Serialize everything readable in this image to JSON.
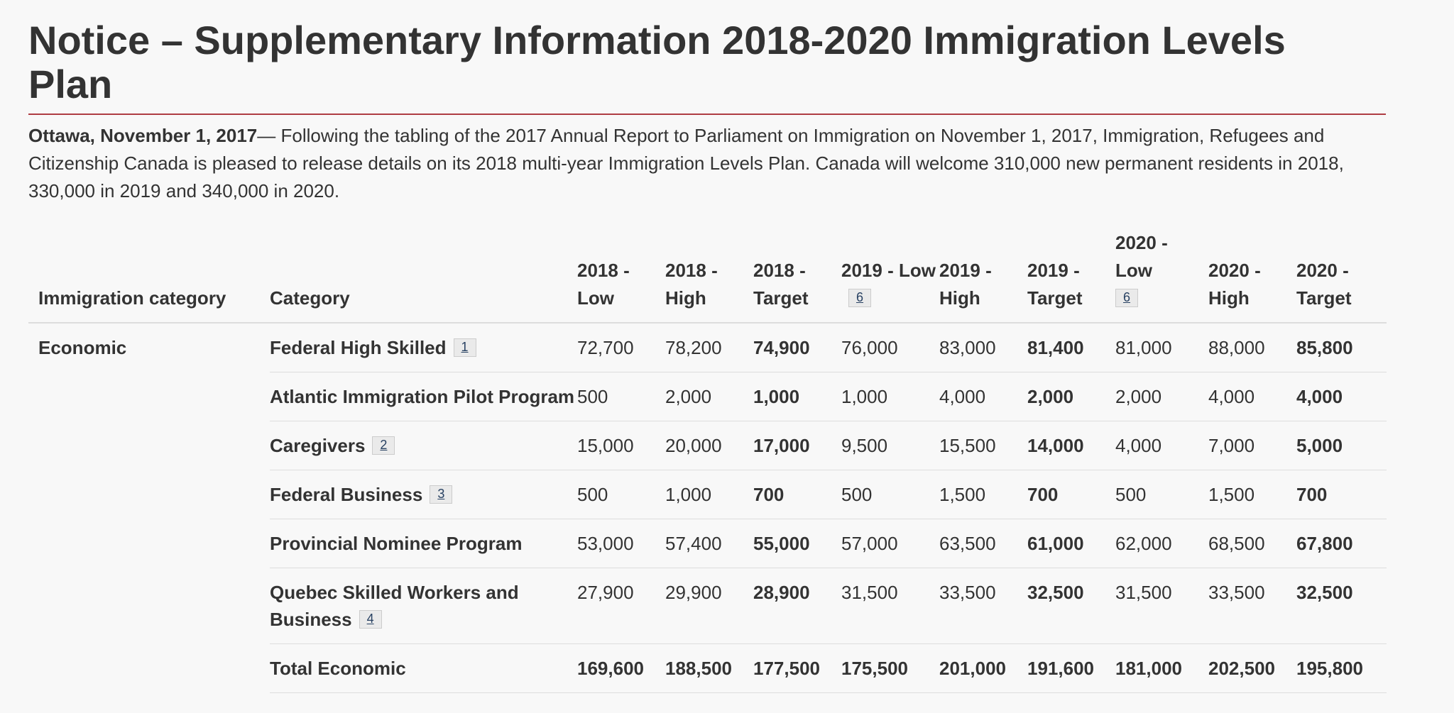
{
  "page": {
    "title": "Notice – Supplementary Information 2018-2020 Immigration Levels Plan",
    "dateline": "Ottawa, November 1, 2017",
    "intro_text": "— Following the tabling of the 2017 Annual Report to Parliament on Immigration on November 1, 2017, Immigration, Refugees and Citizenship Canada is pleased to release details on its 2018 multi-year Immigration Levels Plan. Canada will welcome 310,000 new permanent residents in 2018, 330,000 in 2019 and 340,000 in 2020."
  },
  "table": {
    "headers": {
      "immigration_category": "Immigration category",
      "category": "Category",
      "h2018_low": "2018 - Low",
      "h2018_high": "2018 - High",
      "h2018_target": "2018 - Target",
      "h2019_low": "2019 - Low",
      "h2019_low_fn": "6",
      "h2019_high": "2019 - High",
      "h2019_target": "2019 - Target",
      "h2020_low": "2020 - Low",
      "h2020_low_fn": "6",
      "h2020_high": "2020 - High",
      "h2020_target": "2020 - Target"
    },
    "group": "Economic",
    "rows": [
      {
        "category": "Federal High Skilled",
        "fn": "1",
        "values": [
          "72,700",
          "78,200",
          "74,900",
          "76,000",
          "83,000",
          "81,400",
          "81,000",
          "88,000",
          "85,800"
        ]
      },
      {
        "category": "Atlantic Immigration Pilot Program",
        "fn": "",
        "values": [
          "500",
          "2,000",
          "1,000",
          "1,000",
          "4,000",
          "2,000",
          "2,000",
          "4,000",
          "4,000"
        ]
      },
      {
        "category": "Caregivers",
        "fn": "2",
        "values": [
          "15,000",
          "20,000",
          "17,000",
          "9,500",
          "15,500",
          "14,000",
          "4,000",
          "7,000",
          "5,000"
        ]
      },
      {
        "category": "Federal Business",
        "fn": "3",
        "values": [
          "500",
          "1,000",
          "700",
          "500",
          "1,500",
          "700",
          "500",
          "1,500",
          "700"
        ]
      },
      {
        "category": "Provincial Nominee Program",
        "fn": "",
        "values": [
          "53,000",
          "57,400",
          "55,000",
          "57,000",
          "63,500",
          "61,000",
          "62,000",
          "68,500",
          "67,800"
        ]
      },
      {
        "category": "Quebec Skilled Workers and Business",
        "fn": "4",
        "values": [
          "27,900",
          "29,900",
          "28,900",
          "31,500",
          "33,500",
          "32,500",
          "31,500",
          "33,500",
          "32,500"
        ]
      },
      {
        "category": "Total Economic",
        "fn": "",
        "values": [
          "169,600",
          "188,500",
          "177,500",
          "175,500",
          "201,000",
          "191,600",
          "181,000",
          "202,500",
          "195,800"
        ]
      }
    ]
  }
}
